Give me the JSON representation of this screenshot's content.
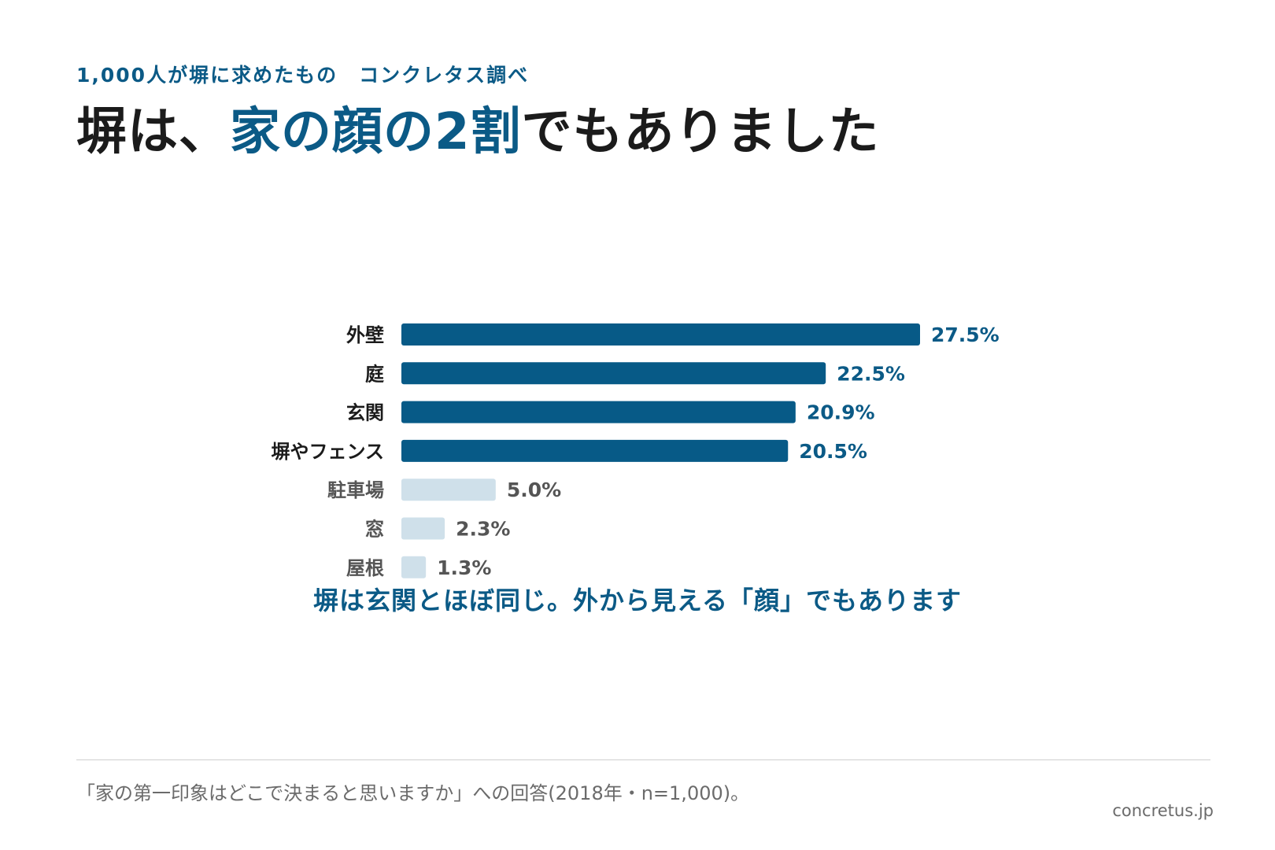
{
  "header": {
    "kicker": "1,000人が塀に求めたもの　コンクレタス調べ",
    "headline_pre": "塀は、",
    "headline_accent": "家の顔の2割",
    "headline_post": "でもありました"
  },
  "colors": {
    "accent": "#0b5a86",
    "bar_highlight": "#075a87",
    "bar_muted": "#cfe0ea",
    "label_highlight": "#1b1b1b",
    "label_muted": "#555555"
  },
  "chart_data": {
    "type": "bar",
    "orientation": "horizontal",
    "categories": [
      "外壁",
      "庭",
      "玄関",
      "塀やフェンス",
      "駐車場",
      "窓",
      "屋根"
    ],
    "values": [
      27.5,
      22.5,
      20.9,
      20.5,
      5.0,
      2.3,
      1.3
    ],
    "value_labels": [
      "27.5%",
      "22.5%",
      "20.9%",
      "20.5%",
      "5.0%",
      "2.3%",
      "1.3%"
    ],
    "highlighted": [
      true,
      true,
      true,
      true,
      false,
      false,
      false
    ],
    "xlim": [
      0,
      27.5
    ],
    "grid": false,
    "legend": "none"
  },
  "caption": "塀は玄関とほぼ同じ。外から見える「顔」でもあります",
  "footer": {
    "note": "「家の第一印象はどこで決まると思いますか」への回答(2018年・n=1,000)。",
    "source": "concretus.jp"
  }
}
